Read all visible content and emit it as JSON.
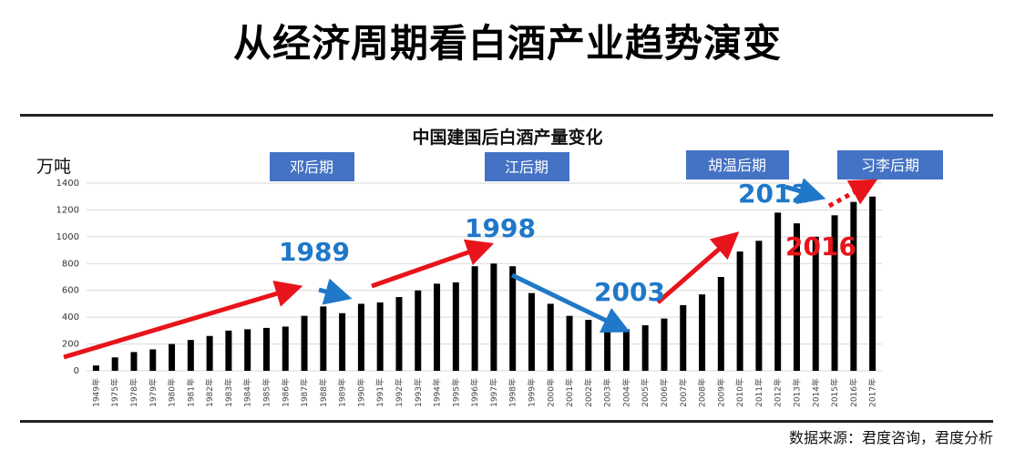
{
  "page_title": "从经济周期看白酒产业趋势演变",
  "source": "数据来源：君度咨询，君度分析",
  "colors": {
    "bar": "#000000",
    "era_box": "#4472c4",
    "up_arrow": "#e8141b",
    "down_arrow": "#1f78c8"
  },
  "chart_data": {
    "type": "bar",
    "title": "中国建国后白酒产量变化",
    "ylabel": "万吨",
    "ylim": [
      0,
      1400
    ],
    "yticks": [
      0,
      200,
      400,
      600,
      800,
      1000,
      1200,
      1400
    ],
    "grid": true,
    "categories": [
      "1949年",
      "1975年",
      "1978年",
      "1979年",
      "1980年",
      "1981年",
      "1982年",
      "1983年",
      "1984年",
      "1985年",
      "1986年",
      "1987年",
      "1988年",
      "1989年",
      "1990年",
      "1991年",
      "1992年",
      "1993年",
      "1994年",
      "1995年",
      "1996年",
      "1997年",
      "1998年",
      "1999年",
      "2000年",
      "2001年",
      "2002年",
      "2003年",
      "2004年",
      "2005年",
      "2006年",
      "2007年",
      "2008年",
      "2009年",
      "2010年",
      "2011年",
      "2012年",
      "2013年",
      "2014年",
      "2015年",
      "2016年",
      "2017年"
    ],
    "values": [
      40,
      100,
      140,
      160,
      200,
      230,
      260,
      300,
      310,
      320,
      330,
      410,
      480,
      430,
      500,
      510,
      550,
      600,
      650,
      660,
      780,
      800,
      780,
      580,
      500,
      410,
      380,
      310,
      310,
      340,
      390,
      490,
      570,
      700,
      890,
      970,
      1180,
      1100,
      1000,
      1160,
      1260,
      1300
    ],
    "eras": [
      "邓后期",
      "江后期",
      "胡温后期",
      "习李后期"
    ],
    "annotations": [
      {
        "label": "1989",
        "color": "blue"
      },
      {
        "label": "1998",
        "color": "blue"
      },
      {
        "label": "2003",
        "color": "blue"
      },
      {
        "label": "2012",
        "color": "blue"
      },
      {
        "label": "2016",
        "color": "red"
      }
    ]
  }
}
